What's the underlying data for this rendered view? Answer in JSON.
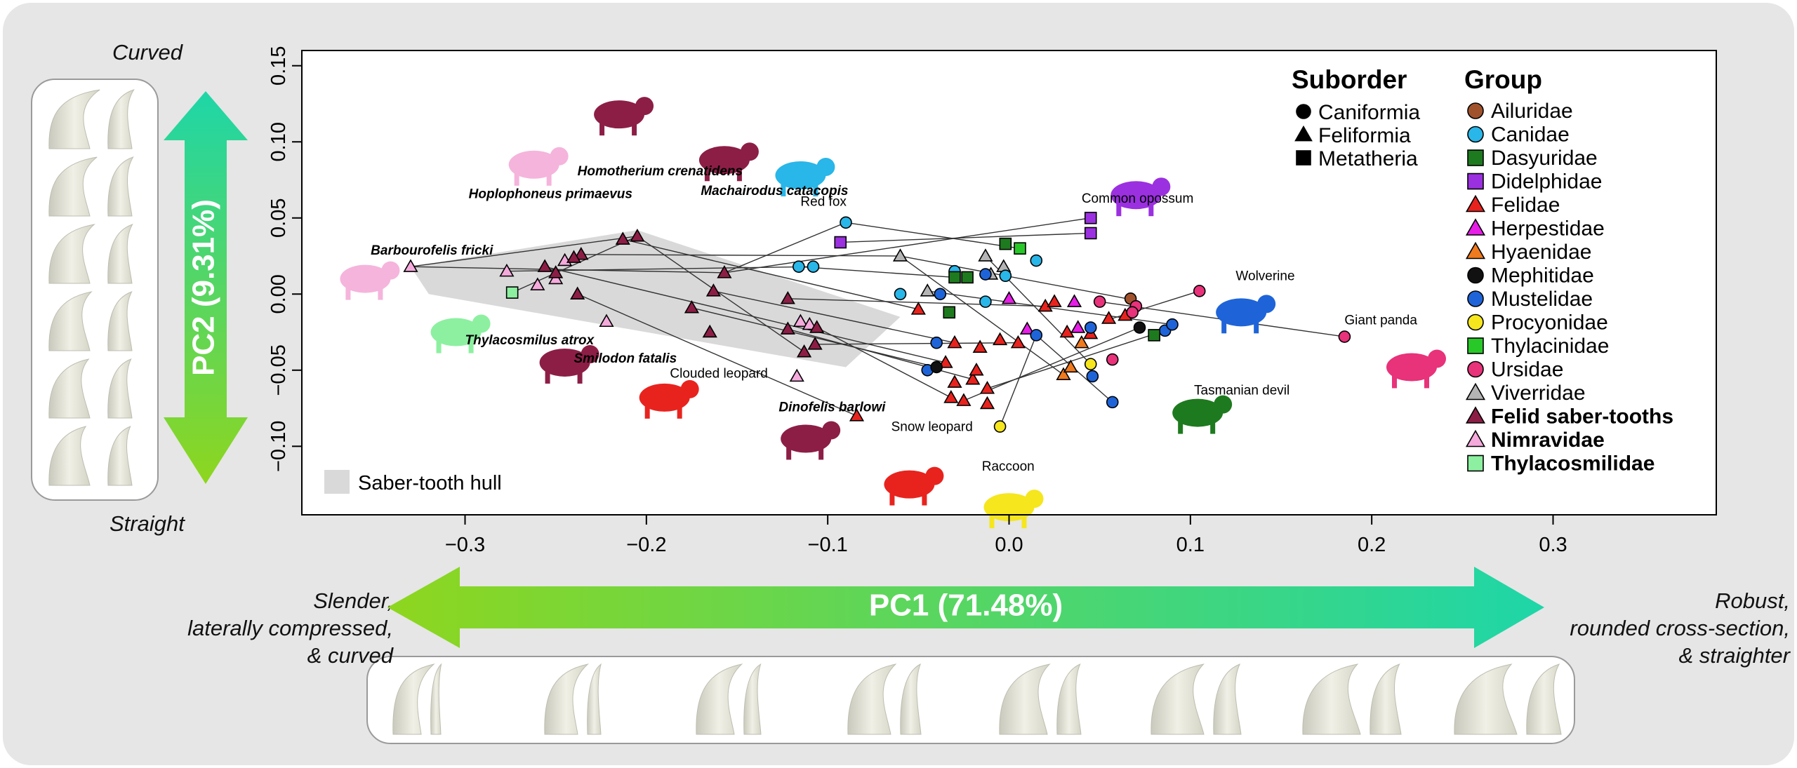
{
  "chart_data": {
    "type": "scatter",
    "xlim": [
      -0.39,
      0.39
    ],
    "ylim": [
      -0.145,
      0.16
    ],
    "x_ticks": [
      "−0.3",
      "−0.2",
      "−0.1",
      "0.0",
      "0.1",
      "0.2",
      "0.3"
    ],
    "x_tick_values": [
      -0.3,
      -0.2,
      -0.1,
      0.0,
      0.1,
      0.2,
      0.3
    ],
    "y_ticks": [
      "−0.10",
      "−0.05",
      "0.00",
      "0.05",
      "0.10",
      "0.15"
    ],
    "y_tick_values": [
      -0.1,
      -0.05,
      0.0,
      0.05,
      0.1,
      0.15
    ],
    "xlabel": "PC1 (71.48%)",
    "ylabel": "PC2 (9.31%)",
    "x_low_label": "Slender,\nlaterally compressed,\n& curved",
    "x_high_label": "Robust,\nrounded cross-section,\n& straighter",
    "y_high_label": "Curved",
    "y_low_label": "Straight",
    "hull_label": "Saber-tooth hull",
    "hull": [
      [
        -0.33,
        0.018
      ],
      [
        -0.205,
        0.042
      ],
      [
        -0.06,
        -0.015
      ],
      [
        -0.09,
        -0.048
      ],
      [
        -0.32,
        0.0
      ]
    ],
    "suborder_legend": {
      "title": "Suborder",
      "items": [
        {
          "label": "Caniformia",
          "shape": "circle"
        },
        {
          "label": "Feliformia",
          "shape": "triangle"
        },
        {
          "label": "Metatheria",
          "shape": "square"
        }
      ]
    },
    "group_legend": {
      "title": "Group",
      "items": [
        {
          "label": "Ailuridae",
          "color": "#a0522d",
          "shape": "circle",
          "bold": false
        },
        {
          "label": "Canidae",
          "color": "#29b6e8",
          "shape": "circle",
          "bold": false
        },
        {
          "label": "Dasyuridae",
          "color": "#1e7a1e",
          "shape": "square",
          "bold": false
        },
        {
          "label": "Didelphidae",
          "color": "#9b30e0",
          "shape": "square",
          "bold": false
        },
        {
          "label": "Felidae",
          "color": "#e8231e",
          "shape": "triangle",
          "bold": false
        },
        {
          "label": "Herpestidae",
          "color": "#e61ee6",
          "shape": "triangle",
          "bold": false
        },
        {
          "label": "Hyaenidae",
          "color": "#f07a1e",
          "shape": "triangle",
          "bold": false
        },
        {
          "label": "Mephitidae",
          "color": "#111111",
          "shape": "circle",
          "bold": false
        },
        {
          "label": "Mustelidae",
          "color": "#1e64d8",
          "shape": "circle",
          "bold": false
        },
        {
          "label": "Procyonidae",
          "color": "#f5e61e",
          "shape": "circle",
          "bold": false
        },
        {
          "label": "Thylacinidae",
          "color": "#28c828",
          "shape": "square",
          "bold": false
        },
        {
          "label": "Ursidae",
          "color": "#e8327a",
          "shape": "circle",
          "bold": false
        },
        {
          "label": "Viverridae",
          "color": "#b4b4b4",
          "shape": "triangle",
          "bold": false
        },
        {
          "label": "Felid saber-tooths",
          "color": "#8c1e46",
          "shape": "triangle",
          "bold": true
        },
        {
          "label": "Nimravidae",
          "color": "#f5aadc",
          "shape": "triangle",
          "bold": true
        },
        {
          "label": "Thylacosmilidae",
          "color": "#8cf0a0",
          "shape": "square",
          "bold": true
        }
      ]
    },
    "points": [
      {
        "x": -0.33,
        "y": 0.018,
        "group": "Nimravidae",
        "shape": "triangle"
      },
      {
        "x": -0.277,
        "y": 0.015,
        "group": "Nimravidae",
        "shape": "triangle"
      },
      {
        "x": -0.25,
        "y": 0.01,
        "group": "Nimravidae",
        "shape": "triangle"
      },
      {
        "x": -0.245,
        "y": 0.022,
        "group": "Nimravidae",
        "shape": "triangle"
      },
      {
        "x": -0.26,
        "y": 0.006,
        "group": "Nimravidae",
        "shape": "triangle"
      },
      {
        "x": -0.222,
        "y": -0.018,
        "group": "Nimravidae",
        "shape": "triangle"
      },
      {
        "x": -0.115,
        "y": -0.018,
        "group": "Nimravidae",
        "shape": "triangle"
      },
      {
        "x": -0.117,
        "y": -0.054,
        "group": "Nimravidae",
        "shape": "triangle"
      },
      {
        "x": -0.11,
        "y": -0.02,
        "group": "Nimravidae",
        "shape": "triangle"
      },
      {
        "x": -0.274,
        "y": 0.001,
        "group": "Thylacosmilidae",
        "shape": "square"
      },
      {
        "x": -0.213,
        "y": 0.036,
        "group": "Felid saber-tooths",
        "shape": "triangle"
      },
      {
        "x": -0.205,
        "y": 0.038,
        "group": "Felid saber-tooths",
        "shape": "triangle"
      },
      {
        "x": -0.256,
        "y": 0.018,
        "group": "Felid saber-tooths",
        "shape": "triangle"
      },
      {
        "x": -0.236,
        "y": 0.026,
        "group": "Felid saber-tooths",
        "shape": "triangle"
      },
      {
        "x": -0.24,
        "y": 0.024,
        "group": "Felid saber-tooths",
        "shape": "triangle"
      },
      {
        "x": -0.25,
        "y": 0.014,
        "group": "Felid saber-tooths",
        "shape": "triangle"
      },
      {
        "x": -0.238,
        "y": 0.0,
        "group": "Felid saber-tooths",
        "shape": "triangle"
      },
      {
        "x": -0.157,
        "y": 0.014,
        "group": "Felid saber-tooths",
        "shape": "triangle"
      },
      {
        "x": -0.163,
        "y": 0.002,
        "group": "Felid saber-tooths",
        "shape": "triangle"
      },
      {
        "x": -0.175,
        "y": -0.009,
        "group": "Felid saber-tooths",
        "shape": "triangle"
      },
      {
        "x": -0.165,
        "y": -0.025,
        "group": "Felid saber-tooths",
        "shape": "triangle"
      },
      {
        "x": -0.122,
        "y": -0.003,
        "group": "Felid saber-tooths",
        "shape": "triangle"
      },
      {
        "x": -0.122,
        "y": -0.023,
        "group": "Felid saber-tooths",
        "shape": "triangle"
      },
      {
        "x": -0.113,
        "y": -0.038,
        "group": "Felid saber-tooths",
        "shape": "triangle"
      },
      {
        "x": -0.106,
        "y": -0.022,
        "group": "Felid saber-tooths",
        "shape": "triangle"
      },
      {
        "x": -0.107,
        "y": -0.033,
        "group": "Felid saber-tooths",
        "shape": "triangle"
      },
      {
        "x": -0.084,
        "y": -0.08,
        "group": "Felidae",
        "shape": "triangle"
      },
      {
        "x": -0.05,
        "y": -0.01,
        "group": "Felidae",
        "shape": "triangle"
      },
      {
        "x": -0.03,
        "y": -0.032,
        "group": "Felidae",
        "shape": "triangle"
      },
      {
        "x": -0.035,
        "y": -0.045,
        "group": "Felidae",
        "shape": "triangle"
      },
      {
        "x": -0.032,
        "y": -0.068,
        "group": "Felidae",
        "shape": "triangle"
      },
      {
        "x": -0.025,
        "y": -0.07,
        "group": "Felidae",
        "shape": "triangle"
      },
      {
        "x": -0.02,
        "y": -0.056,
        "group": "Felidae",
        "shape": "triangle"
      },
      {
        "x": -0.012,
        "y": -0.062,
        "group": "Felidae",
        "shape": "triangle"
      },
      {
        "x": -0.012,
        "y": -0.072,
        "group": "Felidae",
        "shape": "triangle"
      },
      {
        "x": -0.018,
        "y": -0.05,
        "group": "Felidae",
        "shape": "triangle"
      },
      {
        "x": -0.016,
        "y": -0.035,
        "group": "Felidae",
        "shape": "triangle"
      },
      {
        "x": -0.005,
        "y": -0.03,
        "group": "Felidae",
        "shape": "triangle"
      },
      {
        "x": 0.005,
        "y": -0.032,
        "group": "Felidae",
        "shape": "triangle"
      },
      {
        "x": 0.02,
        "y": -0.008,
        "group": "Felidae",
        "shape": "triangle"
      },
      {
        "x": 0.025,
        "y": -0.005,
        "group": "Felidae",
        "shape": "triangle"
      },
      {
        "x": 0.055,
        "y": -0.016,
        "group": "Felidae",
        "shape": "triangle"
      },
      {
        "x": 0.064,
        "y": -0.014,
        "group": "Felidae",
        "shape": "triangle"
      },
      {
        "x": 0.032,
        "y": -0.025,
        "group": "Felidae",
        "shape": "triangle"
      },
      {
        "x": 0.045,
        "y": -0.026,
        "group": "Felidae",
        "shape": "triangle"
      },
      {
        "x": -0.03,
        "y": -0.058,
        "group": "Felidae",
        "shape": "triangle"
      },
      {
        "x": 0.0,
        "y": -0.003,
        "group": "Herpestidae",
        "shape": "triangle"
      },
      {
        "x": 0.01,
        "y": -0.023,
        "group": "Herpestidae",
        "shape": "triangle"
      },
      {
        "x": 0.036,
        "y": -0.005,
        "group": "Herpestidae",
        "shape": "triangle"
      },
      {
        "x": 0.038,
        "y": -0.022,
        "group": "Herpestidae",
        "shape": "triangle"
      },
      {
        "x": 0.03,
        "y": -0.053,
        "group": "Hyaenidae",
        "shape": "triangle"
      },
      {
        "x": 0.034,
        "y": -0.048,
        "group": "Hyaenidae",
        "shape": "triangle"
      },
      {
        "x": 0.04,
        "y": -0.032,
        "group": "Hyaenidae",
        "shape": "triangle"
      },
      {
        "x": -0.06,
        "y": 0.025,
        "group": "Viverridae",
        "shape": "triangle"
      },
      {
        "x": -0.045,
        "y": 0.002,
        "group": "Viverridae",
        "shape": "triangle"
      },
      {
        "x": -0.01,
        "y": 0.013,
        "group": "Viverridae",
        "shape": "triangle"
      },
      {
        "x": -0.013,
        "y": 0.025,
        "group": "Viverridae",
        "shape": "triangle"
      },
      {
        "x": -0.003,
        "y": 0.018,
        "group": "Viverridae",
        "shape": "triangle"
      },
      {
        "x": -0.09,
        "y": 0.047,
        "group": "Canidae",
        "shape": "circle"
      },
      {
        "x": -0.116,
        "y": 0.018,
        "group": "Canidae",
        "shape": "circle"
      },
      {
        "x": -0.108,
        "y": 0.018,
        "group": "Canidae",
        "shape": "circle"
      },
      {
        "x": -0.06,
        "y": 0.0,
        "group": "Canidae",
        "shape": "circle"
      },
      {
        "x": -0.03,
        "y": 0.015,
        "group": "Canidae",
        "shape": "circle"
      },
      {
        "x": -0.013,
        "y": -0.005,
        "group": "Canidae",
        "shape": "circle"
      },
      {
        "x": 0.015,
        "y": 0.022,
        "group": "Canidae",
        "shape": "circle"
      },
      {
        "x": -0.002,
        "y": 0.012,
        "group": "Canidae",
        "shape": "circle"
      },
      {
        "x": -0.04,
        "y": -0.032,
        "group": "Mustelidae",
        "shape": "circle"
      },
      {
        "x": -0.038,
        "y": 0.0,
        "group": "Mustelidae",
        "shape": "circle"
      },
      {
        "x": -0.013,
        "y": 0.013,
        "group": "Mustelidae",
        "shape": "circle"
      },
      {
        "x": 0.015,
        "y": -0.027,
        "group": "Mustelidae",
        "shape": "circle"
      },
      {
        "x": 0.046,
        "y": -0.054,
        "group": "Mustelidae",
        "shape": "circle"
      },
      {
        "x": 0.057,
        "y": -0.071,
        "group": "Mustelidae",
        "shape": "circle"
      },
      {
        "x": 0.045,
        "y": -0.022,
        "group": "Mustelidae",
        "shape": "circle"
      },
      {
        "x": 0.086,
        "y": -0.024,
        "group": "Mustelidae",
        "shape": "circle"
      },
      {
        "x": 0.09,
        "y": -0.02,
        "group": "Mustelidae",
        "shape": "circle"
      },
      {
        "x": -0.045,
        "y": -0.05,
        "group": "Mustelidae",
        "shape": "circle"
      },
      {
        "x": -0.04,
        "y": -0.048,
        "group": "Mephitidae",
        "shape": "circle"
      },
      {
        "x": 0.072,
        "y": -0.022,
        "group": "Mephitidae",
        "shape": "circle"
      },
      {
        "x": 0.067,
        "y": -0.003,
        "group": "Ailuridae",
        "shape": "circle"
      },
      {
        "x": 0.045,
        "y": -0.046,
        "group": "Procyonidae",
        "shape": "circle"
      },
      {
        "x": -0.005,
        "y": -0.087,
        "group": "Procyonidae",
        "shape": "circle"
      },
      {
        "x": 0.05,
        "y": -0.005,
        "group": "Ursidae",
        "shape": "circle"
      },
      {
        "x": 0.07,
        "y": -0.008,
        "group": "Ursidae",
        "shape": "circle"
      },
      {
        "x": 0.057,
        "y": -0.043,
        "group": "Ursidae",
        "shape": "circle"
      },
      {
        "x": 0.105,
        "y": 0.002,
        "group": "Ursidae",
        "shape": "circle"
      },
      {
        "x": 0.185,
        "y": -0.028,
        "group": "Ursidae",
        "shape": "circle"
      },
      {
        "x": 0.068,
        "y": -0.012,
        "group": "Ursidae",
        "shape": "circle"
      },
      {
        "x": -0.093,
        "y": 0.034,
        "group": "Didelphidae",
        "shape": "square"
      },
      {
        "x": 0.045,
        "y": 0.05,
        "group": "Didelphidae",
        "shape": "square"
      },
      {
        "x": 0.045,
        "y": 0.04,
        "group": "Didelphidae",
        "shape": "square"
      },
      {
        "x": -0.03,
        "y": 0.011,
        "group": "Dasyuridae",
        "shape": "square"
      },
      {
        "x": -0.023,
        "y": 0.011,
        "group": "Dasyuridae",
        "shape": "square"
      },
      {
        "x": -0.002,
        "y": 0.033,
        "group": "Dasyuridae",
        "shape": "square"
      },
      {
        "x": -0.033,
        "y": -0.012,
        "group": "Dasyuridae",
        "shape": "square"
      },
      {
        "x": 0.08,
        "y": -0.027,
        "group": "Dasyuridae",
        "shape": "square"
      },
      {
        "x": 0.006,
        "y": 0.03,
        "group": "Thylacinidae",
        "shape": "square"
      }
    ],
    "lines": [
      [
        -0.33,
        0.018,
        -0.205,
        0.038
      ],
      [
        -0.33,
        0.018,
        -0.157,
        0.014
      ],
      [
        -0.205,
        0.038,
        -0.113,
        -0.038
      ],
      [
        -0.213,
        0.036,
        -0.05,
        -0.01
      ],
      [
        -0.157,
        0.014,
        -0.09,
        0.047
      ],
      [
        -0.157,
        0.014,
        0.045,
        0.05
      ],
      [
        -0.163,
        0.002,
        -0.03,
        -0.032
      ],
      [
        -0.175,
        -0.009,
        -0.04,
        -0.048
      ],
      [
        -0.122,
        -0.003,
        0.02,
        -0.008
      ],
      [
        -0.236,
        0.026,
        -0.06,
        0.025
      ],
      [
        -0.256,
        0.018,
        -0.035,
        -0.045
      ],
      [
        -0.238,
        0.0,
        -0.084,
        -0.08
      ],
      [
        -0.274,
        0.001,
        -0.205,
        0.038
      ],
      [
        -0.277,
        0.015,
        -0.108,
        0.018
      ],
      [
        -0.09,
        0.047,
        0.006,
        0.03
      ],
      [
        -0.093,
        0.034,
        0.045,
        0.04
      ],
      [
        -0.116,
        0.018,
        -0.03,
        0.011
      ],
      [
        -0.06,
        0.025,
        0.065,
        -0.003
      ],
      [
        -0.045,
        0.002,
        0.09,
        -0.02
      ],
      [
        0.05,
        -0.005,
        0.185,
        -0.028
      ],
      [
        0.105,
        0.002,
        0.057,
        -0.016
      ],
      [
        -0.013,
        0.025,
        0.045,
        -0.046
      ],
      [
        -0.005,
        -0.087,
        0.015,
        -0.027
      ],
      [
        0.015,
        -0.027,
        0.057,
        -0.071
      ],
      [
        -0.06,
        0.025,
        0.03,
        -0.053
      ],
      [
        -0.106,
        -0.022,
        -0.032,
        -0.068
      ],
      [
        -0.107,
        -0.033,
        0.005,
        -0.032
      ],
      [
        -0.122,
        -0.023,
        -0.02,
        -0.056
      ],
      [
        -0.025,
        -0.07,
        0.072,
        -0.022
      ],
      [
        -0.012,
        -0.062,
        0.086,
        -0.024
      ]
    ],
    "annotations": [
      {
        "text": "Barbourofelis fricki",
        "x": -0.352,
        "y": 0.026,
        "bold": true
      },
      {
        "text": "Hoplophoneus primaevus",
        "x": -0.298,
        "y": 0.063,
        "bold": true
      },
      {
        "text": "Homotherium crenatidens",
        "x": -0.238,
        "y": 0.078,
        "bold": true
      },
      {
        "text": "Machairodus catacopis",
        "x": -0.17,
        "y": 0.065,
        "bold": true
      },
      {
        "text": "Thylacosmilus atrox",
        "x": -0.3,
        "y": -0.033,
        "bold": true
      },
      {
        "text": "Smilodon fatalis",
        "x": -0.24,
        "y": -0.045,
        "bold": true
      },
      {
        "text": "Clouded leopard",
        "x": -0.187,
        "y": -0.055,
        "bold": false
      },
      {
        "text": "Dinofelis barlowi",
        "x": -0.127,
        "y": -0.077,
        "bold": true
      },
      {
        "text": "Red fox",
        "x": -0.115,
        "y": 0.058,
        "bold": false
      },
      {
        "text": "Common opossum",
        "x": 0.04,
        "y": 0.06,
        "bold": false
      },
      {
        "text": "Wolverine",
        "x": 0.125,
        "y": 0.009,
        "bold": false
      },
      {
        "text": "Giant panda",
        "x": 0.185,
        "y": -0.02,
        "bold": false
      },
      {
        "text": "Tasmanian devil",
        "x": 0.102,
        "y": -0.066,
        "bold": false
      },
      {
        "text": "Snow leopard",
        "x": -0.065,
        "y": -0.09,
        "bold": false
      },
      {
        "text": "Raccoon",
        "x": -0.015,
        "y": -0.116,
        "bold": false
      }
    ]
  }
}
